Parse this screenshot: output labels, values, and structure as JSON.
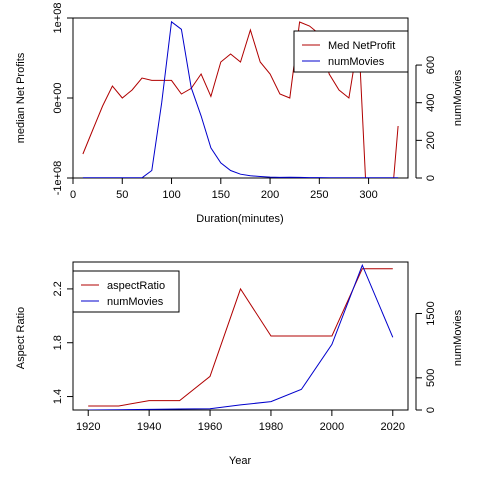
{
  "chart_data": [
    {
      "type": "line",
      "xlabel": "Duration(minutes)",
      "ylabel": "median Net Profits",
      "y2label": "numMovies",
      "xlim": [
        0,
        340
      ],
      "x_ticks": [
        "0",
        "50",
        "100",
        "150",
        "200",
        "250",
        "300"
      ],
      "ylim": [
        -100000000,
        100000000
      ],
      "y_ticks": [
        "-1e+08",
        "0e+00",
        "1e+08"
      ],
      "y2lim": [
        0,
        850
      ],
      "y2_ticks": [
        "0",
        "200",
        "400",
        "600"
      ],
      "legend": "top-right",
      "colors": {
        "profit": "#b00000",
        "movies": "#0000cc"
      },
      "series": [
        {
          "name": "Med NetProfit",
          "axis": "left",
          "x": [
            10,
            20,
            30,
            40,
            50,
            60,
            70,
            80,
            90,
            100,
            110,
            120,
            130,
            140,
            150,
            160,
            170,
            180,
            190,
            200,
            210,
            220,
            230,
            240,
            250,
            260,
            270,
            280,
            290,
            300,
            310,
            320,
            330
          ],
          "values": [
            -70000000,
            -40000000,
            -10000000,
            15000000,
            0,
            10000000,
            25000000,
            22000000,
            22000000,
            22000000,
            5000000,
            12000000,
            30000000,
            2000000,
            45000000,
            55000000,
            45000000,
            85000000,
            45000000,
            30000000,
            5000000,
            0,
            95000000,
            90000000,
            80000000,
            30000000,
            10000000,
            0,
            75000000,
            -180000000,
            -100000000,
            -180000000,
            -35000000
          ]
        },
        {
          "name": "numMovies",
          "axis": "right",
          "x": [
            10,
            20,
            30,
            40,
            50,
            60,
            70,
            80,
            90,
            100,
            110,
            120,
            130,
            140,
            150,
            160,
            170,
            180,
            190,
            200,
            210,
            220,
            230,
            240,
            250,
            260,
            270,
            280,
            290,
            300,
            310,
            320,
            330
          ],
          "values": [
            1,
            1,
            1,
            1,
            1,
            1,
            1,
            40,
            400,
            830,
            790,
            480,
            330,
            160,
            80,
            40,
            20,
            12,
            8,
            5,
            3,
            4,
            3,
            2,
            2,
            1,
            1,
            1,
            1,
            1,
            1,
            1,
            1
          ]
        }
      ]
    },
    {
      "type": "line",
      "xlabel": "Year",
      "ylabel": "Aspect Ratio",
      "y2label": "numMovies",
      "xlim": [
        1915,
        2025
      ],
      "x_ticks": [
        "1920",
        "1940",
        "1960",
        "1980",
        "2000",
        "2020"
      ],
      "ylim": [
        1.3,
        2.4
      ],
      "y_ticks": [
        "1.4",
        "1.8",
        "2.2"
      ],
      "y2lim": [
        0,
        2300
      ],
      "y2_ticks": [
        "0",
        "500",
        "1500"
      ],
      "legend": "top-left",
      "colors": {
        "aspect": "#b00000",
        "movies": "#0000cc"
      },
      "series": [
        {
          "name": "aspectRatio",
          "axis": "left",
          "x": [
            1920,
            1930,
            1940,
            1950,
            1960,
            1970,
            1980,
            1990,
            2000,
            2010,
            2020
          ],
          "values": [
            1.33,
            1.33,
            1.37,
            1.37,
            1.55,
            2.2,
            1.85,
            1.85,
            1.85,
            2.35,
            2.35
          ]
        },
        {
          "name": "numMovies",
          "axis": "right",
          "x": [
            1920,
            1930,
            1940,
            1950,
            1960,
            1970,
            1980,
            1990,
            2000,
            2010,
            2020
          ],
          "values": [
            0,
            5,
            10,
            15,
            20,
            80,
            130,
            320,
            1020,
            2250,
            1130
          ]
        }
      ]
    }
  ]
}
